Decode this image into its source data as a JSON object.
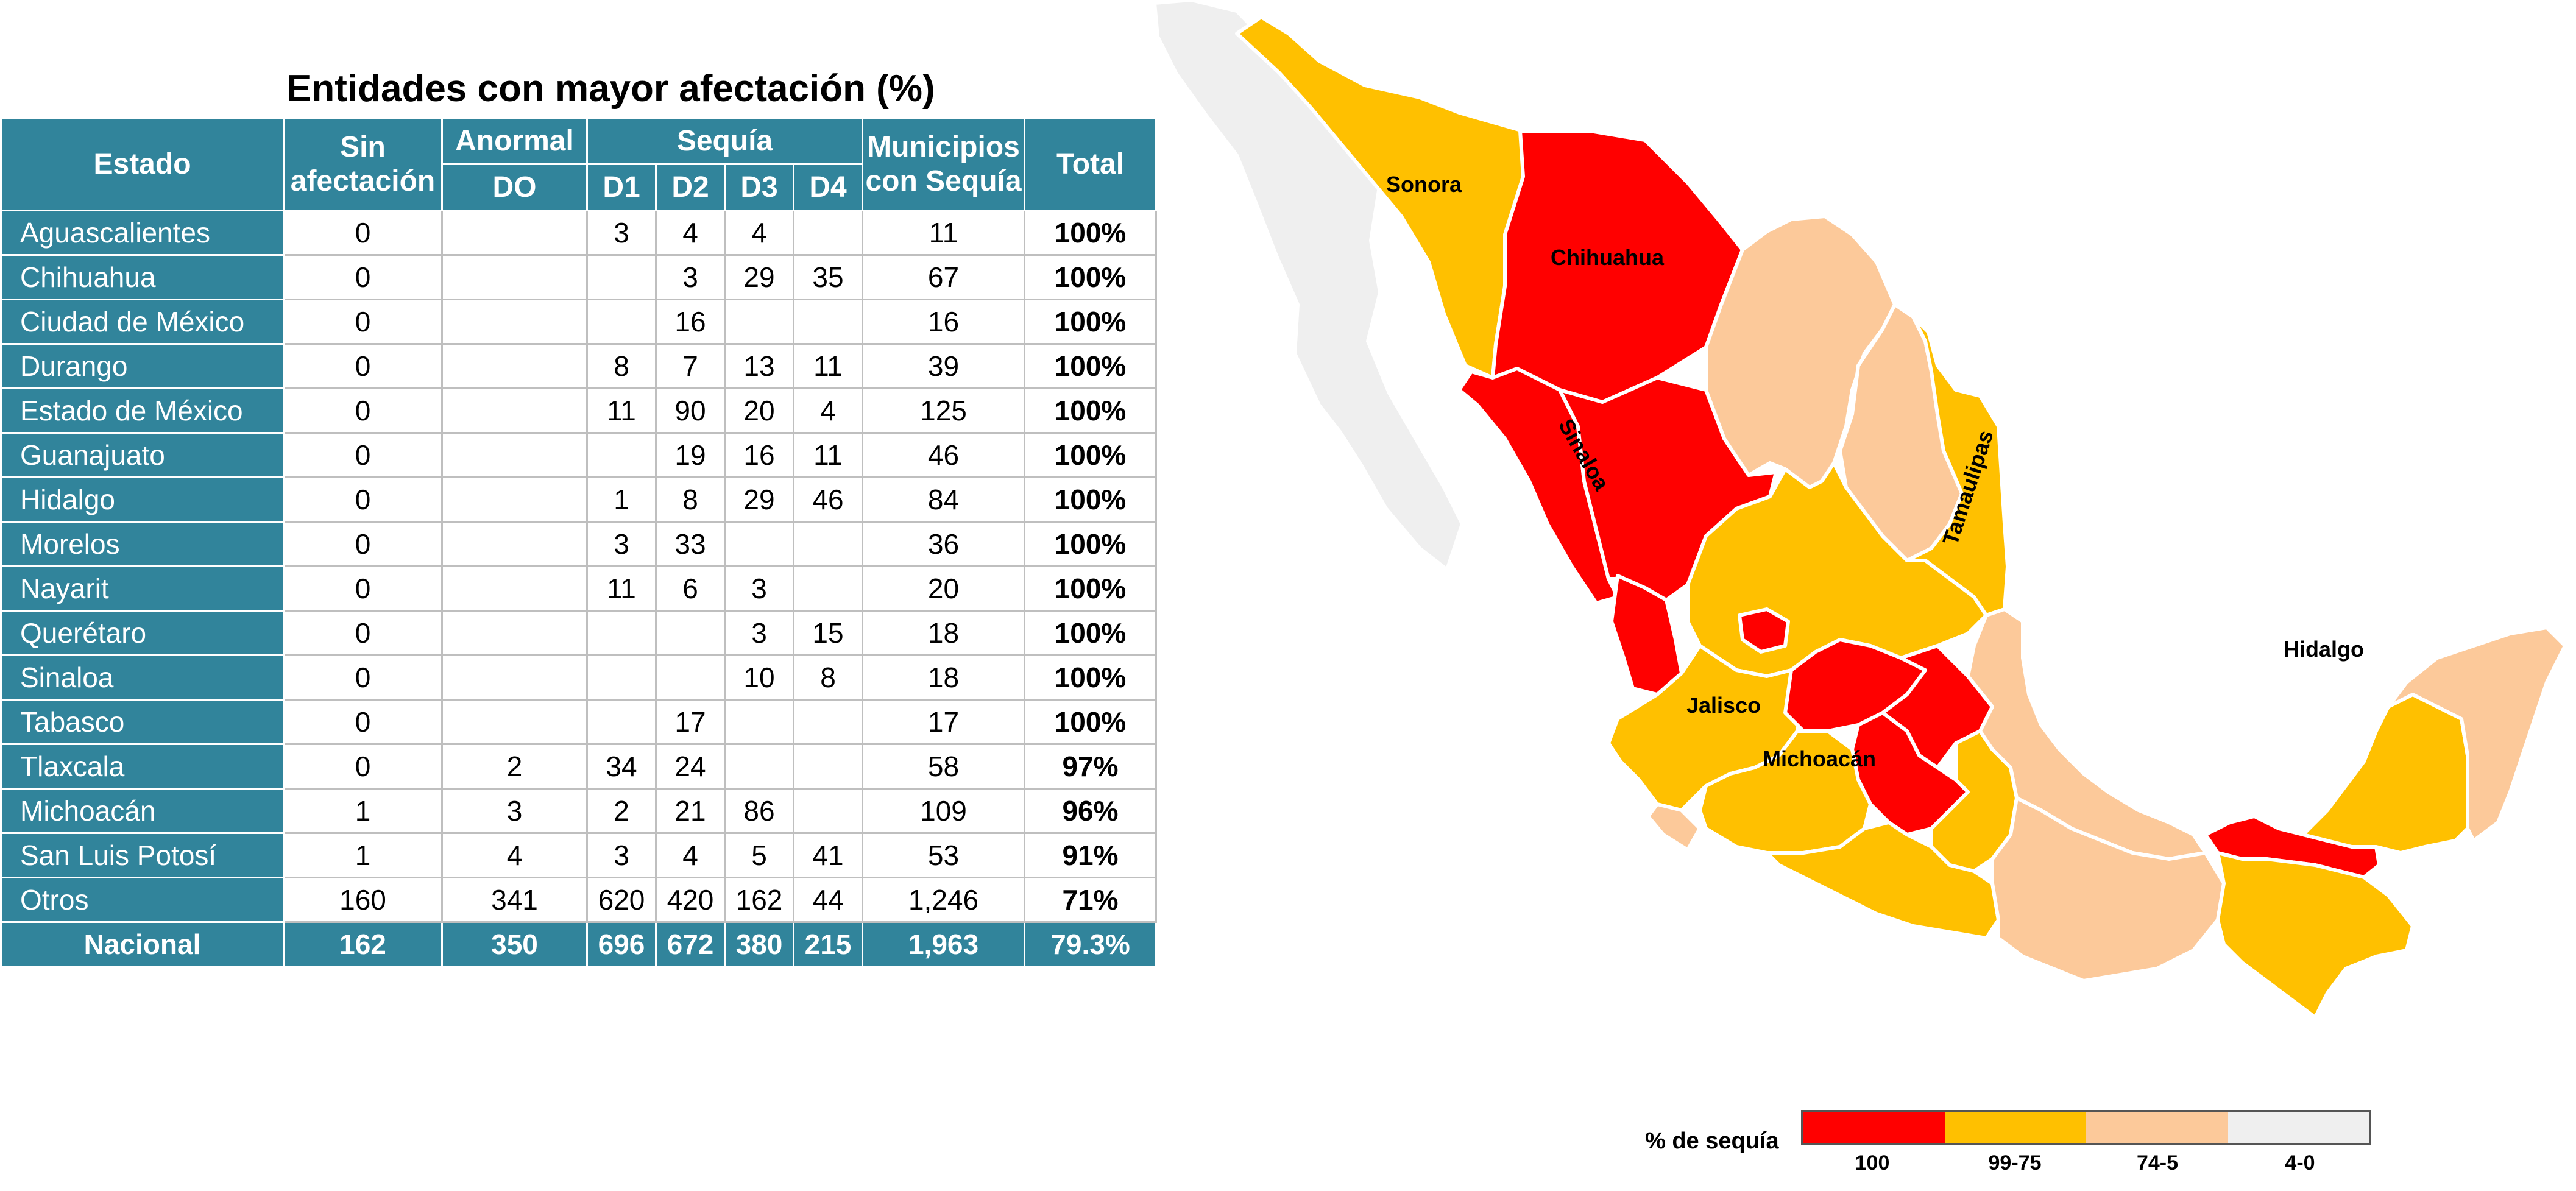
{
  "title": "Entidades con mayor afectación (%)",
  "table": {
    "headers": {
      "estado": "Estado",
      "sin_afectacion": "Sin afectación",
      "anormal": "Anormal",
      "do": "DO",
      "sequia": "Sequía",
      "d1": "D1",
      "d2": "D2",
      "d3": "D3",
      "d4": "D4",
      "municipios": "Municipios con Sequía",
      "total": "Total"
    },
    "rows": [
      {
        "estado": "Aguascalientes",
        "sin": "0",
        "do": "",
        "d1": "3",
        "d2": "4",
        "d3": "4",
        "d4": "",
        "mun": "11",
        "total": "100%"
      },
      {
        "estado": "Chihuahua",
        "sin": "0",
        "do": "",
        "d1": "",
        "d2": "3",
        "d3": "29",
        "d4": "35",
        "mun": "67",
        "total": "100%"
      },
      {
        "estado": "Ciudad de México",
        "sin": "0",
        "do": "",
        "d1": "",
        "d2": "16",
        "d3": "",
        "d4": "",
        "mun": "16",
        "total": "100%"
      },
      {
        "estado": "Durango",
        "sin": "0",
        "do": "",
        "d1": "8",
        "d2": "7",
        "d3": "13",
        "d4": "11",
        "mun": "39",
        "total": "100%"
      },
      {
        "estado": "Estado de México",
        "sin": "0",
        "do": "",
        "d1": "11",
        "d2": "90",
        "d3": "20",
        "d4": "4",
        "mun": "125",
        "total": "100%"
      },
      {
        "estado": "Guanajuato",
        "sin": "0",
        "do": "",
        "d1": "",
        "d2": "19",
        "d3": "16",
        "d4": "11",
        "mun": "46",
        "total": "100%"
      },
      {
        "estado": "Hidalgo",
        "sin": "0",
        "do": "",
        "d1": "1",
        "d2": "8",
        "d3": "29",
        "d4": "46",
        "mun": "84",
        "total": "100%"
      },
      {
        "estado": "Morelos",
        "sin": "0",
        "do": "",
        "d1": "3",
        "d2": "33",
        "d3": "",
        "d4": "",
        "mun": "36",
        "total": "100%"
      },
      {
        "estado": "Nayarit",
        "sin": "0",
        "do": "",
        "d1": "11",
        "d2": "6",
        "d3": "3",
        "d4": "",
        "mun": "20",
        "total": "100%"
      },
      {
        "estado": "Querétaro",
        "sin": "0",
        "do": "",
        "d1": "",
        "d2": "",
        "d3": "3",
        "d4": "15",
        "mun": "18",
        "total": "100%"
      },
      {
        "estado": "Sinaloa",
        "sin": "0",
        "do": "",
        "d1": "",
        "d2": "",
        "d3": "10",
        "d4": "8",
        "mun": "18",
        "total": "100%"
      },
      {
        "estado": "Tabasco",
        "sin": "0",
        "do": "",
        "d1": "",
        "d2": "17",
        "d3": "",
        "d4": "",
        "mun": "17",
        "total": "100%"
      },
      {
        "estado": "Tlaxcala",
        "sin": "0",
        "do": "2",
        "d1": "34",
        "d2": "24",
        "d3": "",
        "d4": "",
        "mun": "58",
        "total": "97%"
      },
      {
        "estado": "Michoacán",
        "sin": "1",
        "do": "3",
        "d1": "2",
        "d2": "21",
        "d3": "86",
        "d4": "",
        "mun": "109",
        "total": "96%"
      },
      {
        "estado": "San Luis Potosí",
        "sin": "1",
        "do": "4",
        "d1": "3",
        "d2": "4",
        "d3": "5",
        "d4": "41",
        "mun": "53",
        "total": "91%"
      },
      {
        "estado": "Otros",
        "sin": "160",
        "do": "341",
        "d1": "620",
        "d2": "420",
        "d3": "162",
        "d4": "44",
        "mun": "1,246",
        "total": "71%"
      }
    ],
    "national": {
      "estado": "Nacional",
      "sin": "162",
      "do": "350",
      "d1": "696",
      "d2": "672",
      "d3": "380",
      "d4": "215",
      "mun": "1,963",
      "total": "79.3%"
    }
  },
  "map": {
    "labels": {
      "sonora": "Sonora",
      "chihuahua": "Chihuahua",
      "sinaloa": "Sinaloa",
      "tamaulipas": "Tamaulipas",
      "jalisco": "Jalisco",
      "michoacan": "Michoacán",
      "hidalgo": "Hidalgo"
    },
    "colors": {
      "c100": "#ff0000",
      "c99_75": "#ffc000",
      "c74_5": "#fcc99a",
      "c4_0": "#efefef"
    }
  },
  "legend": {
    "title": "% de sequía",
    "items": [
      {
        "label": "100",
        "color": "#ff0000"
      },
      {
        "label": "99-75",
        "color": "#ffc000"
      },
      {
        "label": "74-5",
        "color": "#fcc99a"
      },
      {
        "label": "4-0",
        "color": "#efefef"
      }
    ]
  }
}
